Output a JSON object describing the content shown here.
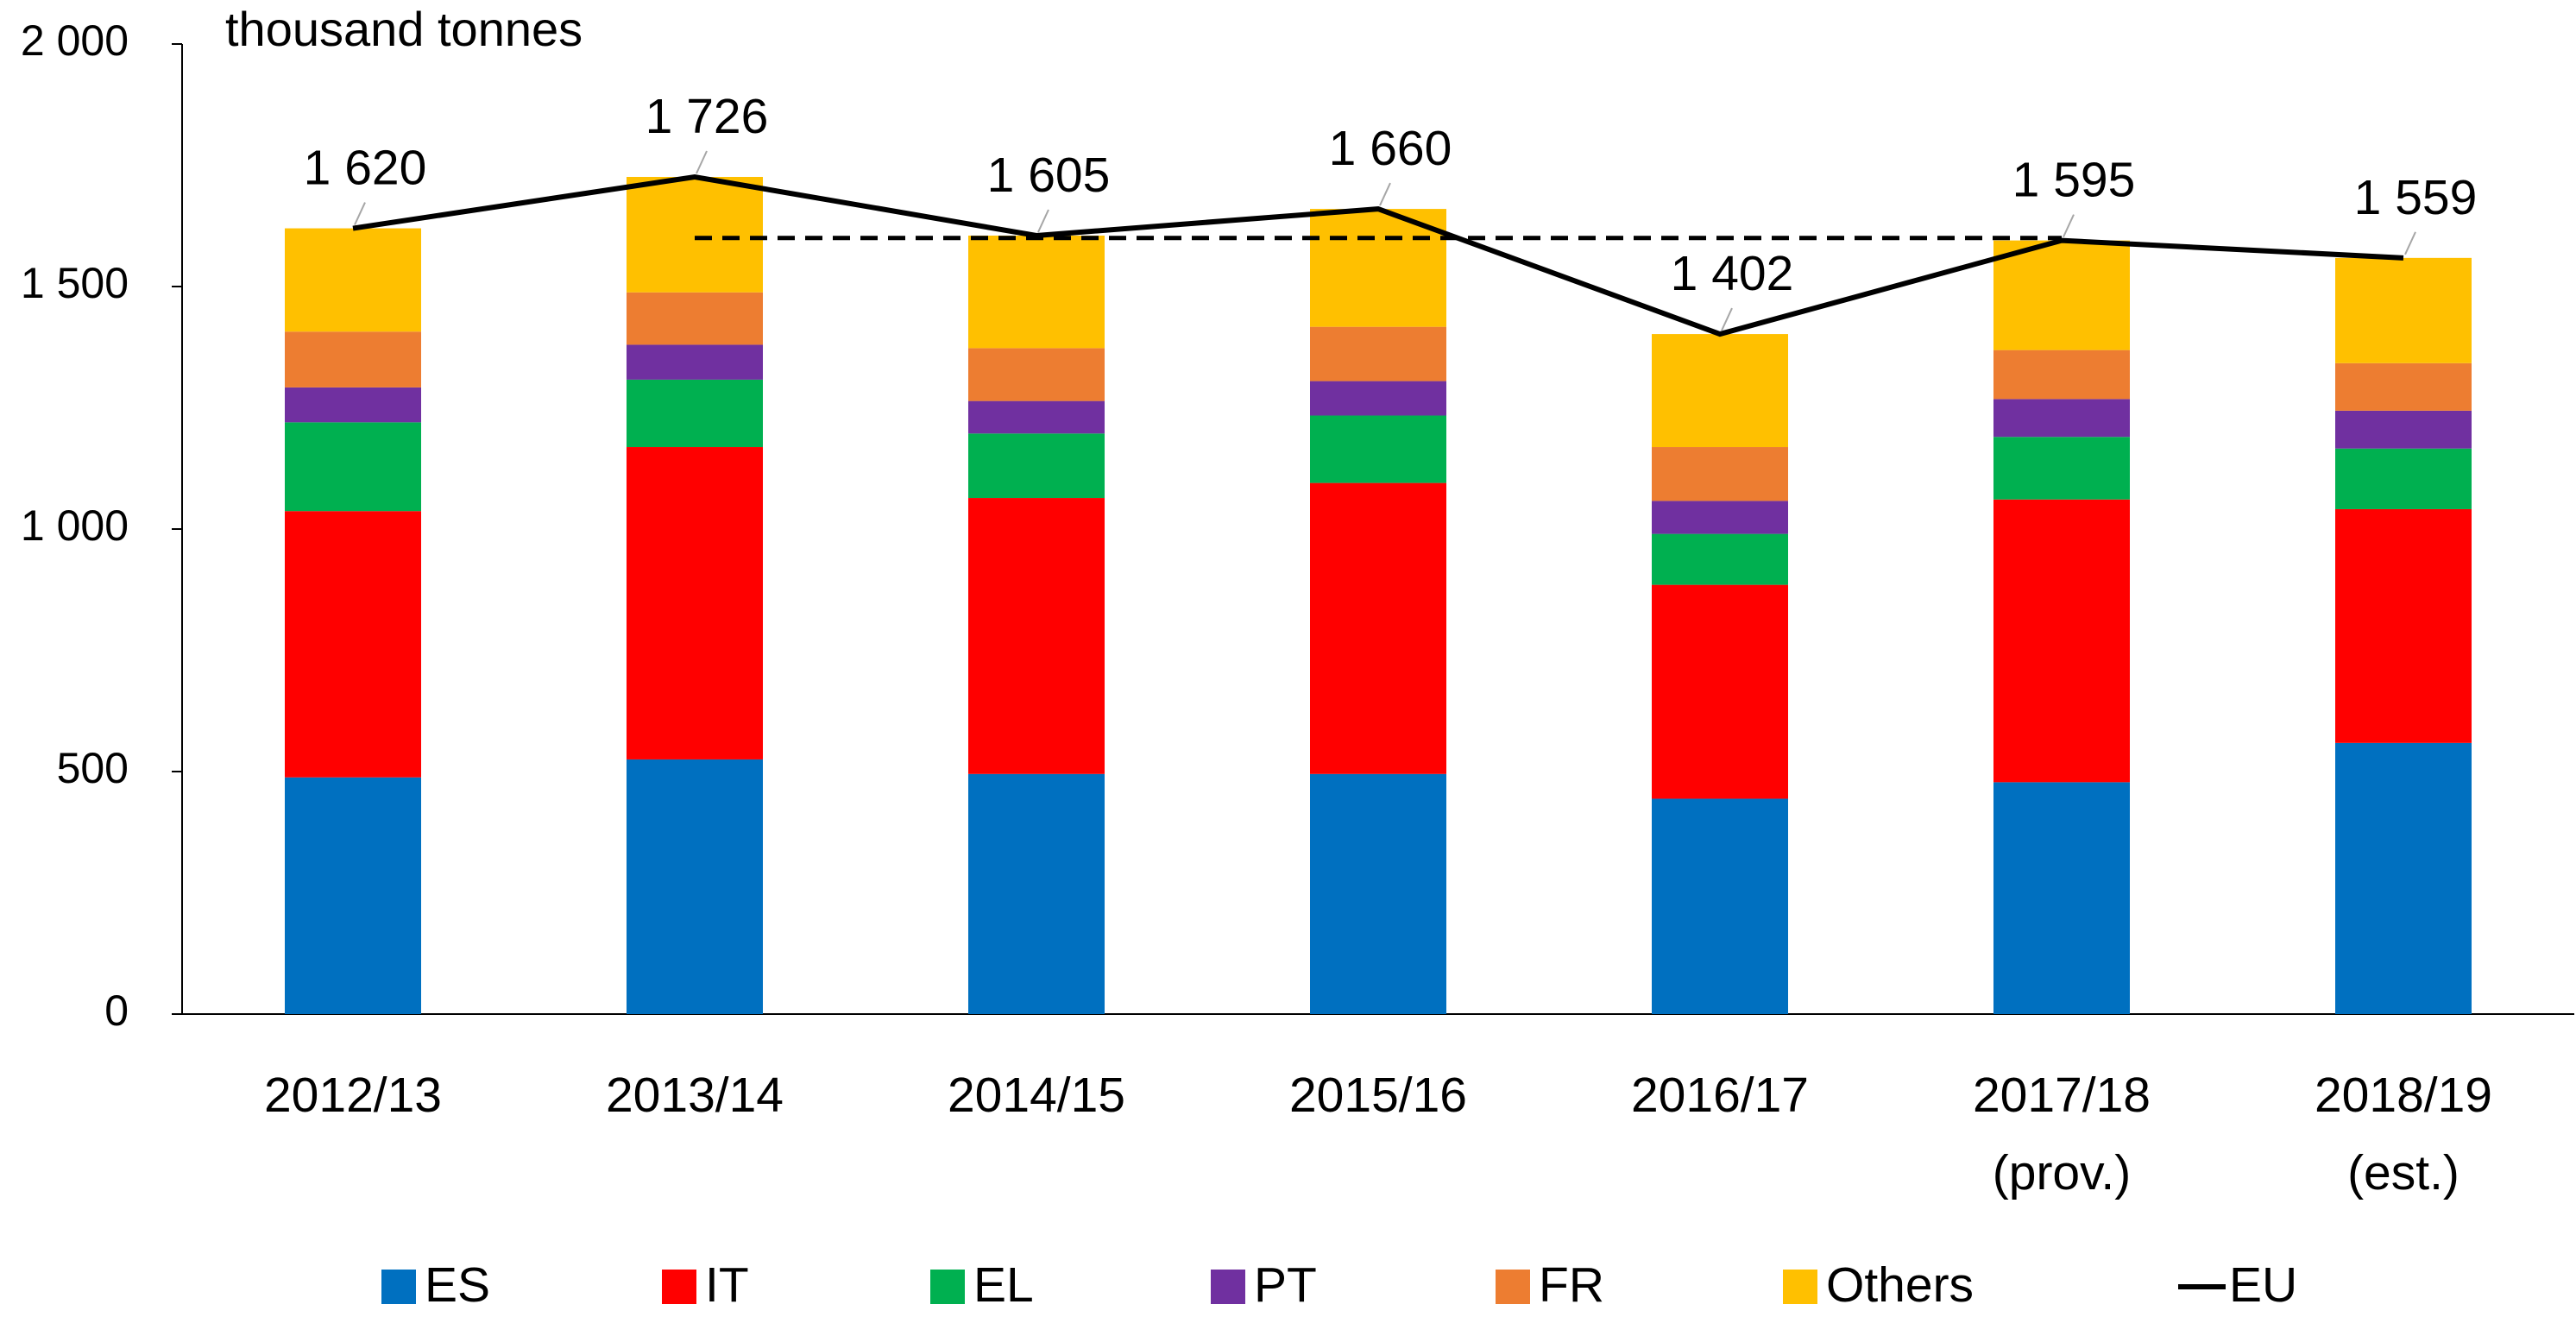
{
  "chart_data": {
    "type": "bar",
    "stacked": true,
    "y_axis_label": "thousand tonnes",
    "categories": [
      "2012/13",
      "2013/14",
      "2014/15",
      "2015/16",
      "2016/17",
      "2017/18\n(prov.)",
      "2018/19\n(est.)"
    ],
    "series": [
      {
        "name": "ES",
        "color": "#0070c0",
        "values": [
          488,
          525,
          495,
          495,
          444,
          478,
          559
        ]
      },
      {
        "name": "IT",
        "color": "#ff0000",
        "values": [
          549,
          644,
          569,
          600,
          441,
          583,
          482
        ]
      },
      {
        "name": "EL",
        "color": "#00b050",
        "values": [
          183,
          139,
          133,
          139,
          105,
          129,
          125
        ]
      },
      {
        "name": "PT",
        "color": "#7030a0",
        "values": [
          72,
          72,
          67,
          71,
          68,
          78,
          78
        ]
      },
      {
        "name": "FR",
        "color": "#ed7d31",
        "values": [
          115,
          108,
          109,
          112,
          111,
          101,
          98
        ]
      },
      {
        "name": "Others",
        "color": "#ffc000",
        "values": [
          213,
          238,
          232,
          243,
          233,
          226,
          217
        ]
      },
      {
        "name": "EU",
        "type": "line",
        "color": "#000000",
        "values": [
          1620,
          1726,
          1605,
          1660,
          1402,
          1595,
          1559
        ],
        "value_labels": [
          "1 620",
          "1 726",
          "1 605",
          "1 660",
          "1 402",
          "1 595",
          "1 559"
        ]
      }
    ],
    "reference_line": {
      "value": 1600,
      "span": [
        "2013/14",
        "2017/18\n(prov.)"
      ],
      "color": "#000000",
      "dashed": true
    },
    "ylim": [
      0,
      2000
    ],
    "yticks": [
      0,
      500,
      {
        "value": 1000,
        "label": "1 000"
      },
      {
        "value": 1500,
        "label": "1 500"
      },
      {
        "value": 2000,
        "label": "2 000"
      }
    ],
    "grid": false,
    "legend": "bottom"
  }
}
